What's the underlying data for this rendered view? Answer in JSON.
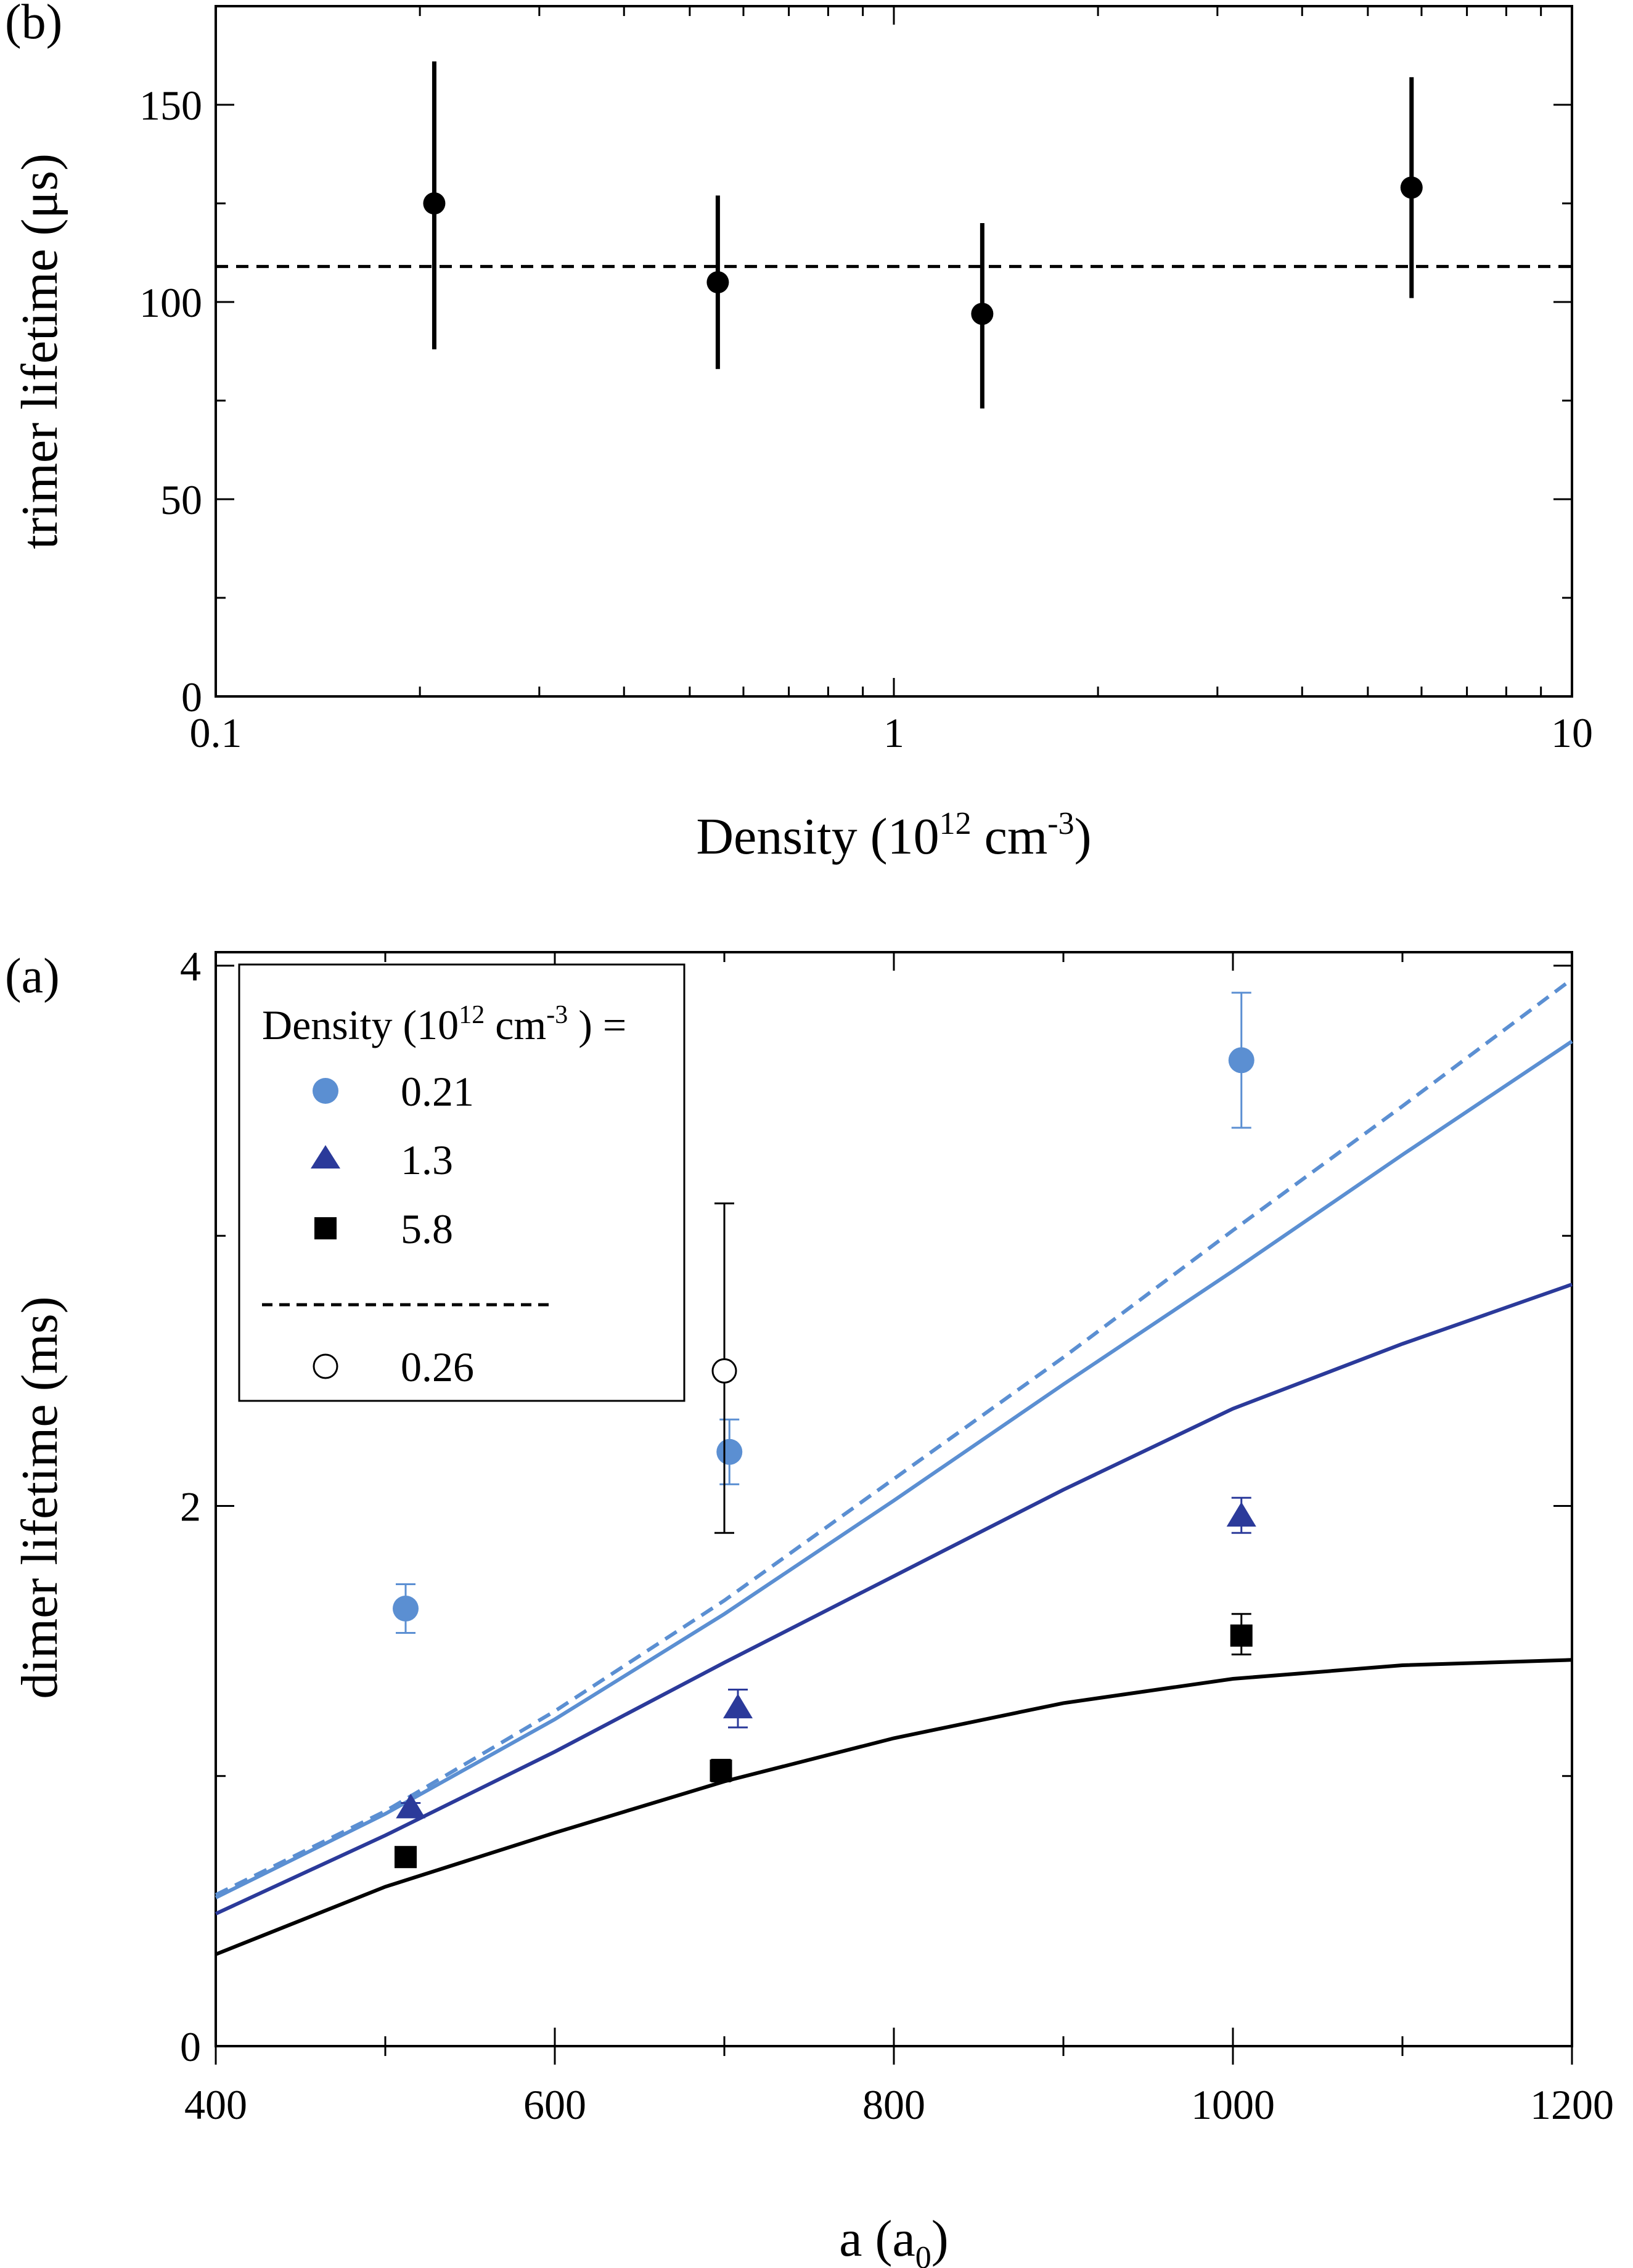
{
  "chart_data": [
    {
      "panel": "(b)",
      "type": "scatter",
      "xlabel": "Density (10",
      "xlabel_sup": "12",
      "xlabel_unit": " cm",
      "xlabel_unit_sup": "-3",
      "xlabel_close": ")",
      "ylabel": "trimer lifetime (μs)",
      "xscale": "log",
      "xlim": [
        0.1,
        10
      ],
      "ylim": [
        0,
        175
      ],
      "xticks": [
        "0.1",
        "1",
        "10"
      ],
      "yticks": [
        "0",
        "50",
        "100",
        "150"
      ],
      "grid": false,
      "series": [
        {
          "points": [
            {
              "x": 0.21,
              "y": 125,
              "err_low": 88,
              "err_high": 161
            },
            {
              "x": 0.55,
              "y": 105,
              "err_low": 83,
              "err_high": 127
            },
            {
              "x": 1.35,
              "y": 97,
              "err_low": 73,
              "err_high": 120
            },
            {
              "x": 5.8,
              "y": 129,
              "err_low": 101,
              "err_high": 157
            }
          ]
        }
      ],
      "reference_line": {
        "y": 109,
        "style": "dashed"
      }
    },
    {
      "panel": "(a)",
      "type": "scatter",
      "xlabel": "a (a",
      "xlabel_sub": "0",
      "xlabel_close": ")",
      "ylabel": "dimer lifetime (ms)",
      "xlim": [
        400,
        1200
      ],
      "ylim": [
        0,
        4.05
      ],
      "xticks": [
        "400",
        "600",
        "800",
        "1000",
        "1200"
      ],
      "yticks": [
        "0",
        "2",
        "4"
      ],
      "grid": false,
      "legend": {
        "title": "Density (10",
        "title_sup": "12",
        "title_unit": " cm",
        "title_unit_sup": "-3",
        "title_close": " ) =",
        "placement": "top-left",
        "entries": [
          "0.21",
          "1.3",
          "5.8",
          "0.26"
        ]
      },
      "colors": {
        "light_blue": "#5b8fd2",
        "dark_blue": "#2b3a9a",
        "black": "#000000"
      },
      "series": [
        {
          "name": "0.21",
          "marker": "circle",
          "color": "#5b8fd2",
          "points": [
            {
              "x": 512,
              "y": 1.62,
              "err_low": 1.53,
              "err_high": 1.71
            },
            {
              "x": 703,
              "y": 2.2,
              "err_low": 2.08,
              "err_high": 2.32
            },
            {
              "x": 1005,
              "y": 3.65,
              "err_low": 3.4,
              "err_high": 3.9
            }
          ]
        },
        {
          "name": "1.3",
          "marker": "triangle",
          "color": "#2b3a9a",
          "points": [
            {
              "x": 515,
              "y": 0.88,
              "err_low": 0.86,
              "err_high": 0.9
            },
            {
              "x": 708,
              "y": 1.25,
              "err_low": 1.18,
              "err_high": 1.32
            },
            {
              "x": 1005,
              "y": 1.96,
              "err_low": 1.9,
              "err_high": 2.03
            }
          ]
        },
        {
          "name": "5.8",
          "marker": "square",
          "color": "#000000",
          "points": [
            {
              "x": 512,
              "y": 0.7,
              "err_low": 0.69,
              "err_high": 0.71
            },
            {
              "x": 698,
              "y": 1.02,
              "err_low": 0.98,
              "err_high": 1.06
            },
            {
              "x": 1005,
              "y": 1.52,
              "err_low": 1.45,
              "err_high": 1.6
            }
          ]
        },
        {
          "name": "0.26",
          "marker": "open-circle",
          "color": "#000000",
          "points": [
            {
              "x": 700,
              "y": 2.5,
              "err_low": 1.9,
              "err_high": 3.12
            }
          ]
        }
      ],
      "curves": [
        {
          "color": "#5b8fd2",
          "style": "dashed",
          "x": [
            400,
            500,
            600,
            700,
            800,
            900,
            1000,
            1100,
            1200
          ],
          "y": [
            0.56,
            0.87,
            1.24,
            1.65,
            2.1,
            2.55,
            3.02,
            3.48,
            3.95
          ]
        },
        {
          "color": "#5b8fd2",
          "style": "solid",
          "x": [
            400,
            500,
            600,
            700,
            800,
            900,
            1000,
            1100,
            1200
          ],
          "y": [
            0.55,
            0.86,
            1.21,
            1.6,
            2.02,
            2.45,
            2.87,
            3.3,
            3.72
          ]
        },
        {
          "color": "#2b3a9a",
          "style": "solid",
          "x": [
            400,
            500,
            600,
            700,
            800,
            900,
            1000,
            1100,
            1200
          ],
          "y": [
            0.49,
            0.78,
            1.09,
            1.42,
            1.74,
            2.06,
            2.36,
            2.6,
            2.82
          ]
        },
        {
          "color": "#000000",
          "style": "solid",
          "x": [
            400,
            500,
            600,
            700,
            800,
            900,
            1000,
            1100,
            1200
          ],
          "y": [
            0.34,
            0.59,
            0.79,
            0.98,
            1.14,
            1.27,
            1.36,
            1.41,
            1.43
          ]
        }
      ]
    }
  ]
}
